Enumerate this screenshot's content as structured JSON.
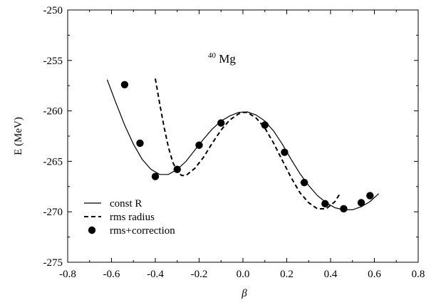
{
  "chart_data": {
    "type": "line",
    "title": "",
    "annotation": {
      "superscript": "40",
      "text": "Mg"
    },
    "xlabel": "β",
    "ylabel": "E (MeV)",
    "xlim": [
      -0.8,
      0.8
    ],
    "ylim": [
      -275,
      -250
    ],
    "xticks": [
      -0.8,
      -0.6,
      -0.4,
      -0.2,
      0.0,
      0.2,
      0.4,
      0.6,
      0.8
    ],
    "yticks": [
      -275,
      -270,
      -265,
      -260,
      -255,
      -250
    ],
    "xtick_labels": [
      "-0.8",
      "-0.6",
      "-0.4",
      "-0.2",
      "0.0",
      "0.2",
      "0.4",
      "0.6",
      "0.8"
    ],
    "ytick_labels": [
      "-275",
      "-270",
      "-265",
      "-260",
      "-255",
      "-250"
    ],
    "grid": false,
    "legend_position": "bottom-left",
    "series": [
      {
        "name": "const R",
        "style": "solid",
        "points": [
          [
            -0.62,
            -256.9
          ],
          [
            -0.58,
            -259.2
          ],
          [
            -0.54,
            -261.4
          ],
          [
            -0.5,
            -263.3
          ],
          [
            -0.46,
            -264.8
          ],
          [
            -0.42,
            -265.8
          ],
          [
            -0.38,
            -266.3
          ],
          [
            -0.34,
            -266.3
          ],
          [
            -0.3,
            -265.8
          ],
          [
            -0.26,
            -265.0
          ],
          [
            -0.22,
            -263.9
          ],
          [
            -0.18,
            -262.8
          ],
          [
            -0.14,
            -261.8
          ],
          [
            -0.1,
            -261.0
          ],
          [
            -0.06,
            -260.5
          ],
          [
            -0.02,
            -260.15
          ],
          [
            0.02,
            -260.1
          ],
          [
            0.06,
            -260.4
          ],
          [
            0.1,
            -261.0
          ],
          [
            0.14,
            -262.0
          ],
          [
            0.18,
            -263.3
          ],
          [
            0.22,
            -264.8
          ],
          [
            0.26,
            -266.2
          ],
          [
            0.3,
            -267.4
          ],
          [
            0.34,
            -268.4
          ],
          [
            0.38,
            -269.1
          ],
          [
            0.42,
            -269.6
          ],
          [
            0.46,
            -269.8
          ],
          [
            0.5,
            -269.8
          ],
          [
            0.54,
            -269.5
          ],
          [
            0.58,
            -269.0
          ],
          [
            0.62,
            -268.2
          ]
        ]
      },
      {
        "name": "rms radius",
        "style": "dashed",
        "points": [
          [
            -0.4,
            -256.8
          ],
          [
            -0.38,
            -259.3
          ],
          [
            -0.36,
            -261.6
          ],
          [
            -0.34,
            -263.6
          ],
          [
            -0.32,
            -265.1
          ],
          [
            -0.3,
            -266.0
          ],
          [
            -0.28,
            -266.4
          ],
          [
            -0.26,
            -266.4
          ],
          [
            -0.22,
            -265.7
          ],
          [
            -0.18,
            -264.6
          ],
          [
            -0.14,
            -263.2
          ],
          [
            -0.1,
            -261.9
          ],
          [
            -0.06,
            -260.9
          ],
          [
            -0.02,
            -260.3
          ],
          [
            0.0,
            -260.15
          ],
          [
            0.02,
            -260.15
          ],
          [
            0.06,
            -260.7
          ],
          [
            0.1,
            -261.7
          ],
          [
            0.14,
            -263.2
          ],
          [
            0.18,
            -264.9
          ],
          [
            0.22,
            -266.6
          ],
          [
            0.26,
            -268.1
          ],
          [
            0.3,
            -269.1
          ],
          [
            0.34,
            -269.7
          ],
          [
            0.38,
            -269.7
          ],
          [
            0.42,
            -269.0
          ],
          [
            0.44,
            -268.3
          ]
        ]
      },
      {
        "name": "rms+correction",
        "style": "markers",
        "points": [
          [
            -0.54,
            -257.4
          ],
          [
            -0.47,
            -263.2
          ],
          [
            -0.4,
            -266.5
          ],
          [
            -0.3,
            -265.8
          ],
          [
            -0.2,
            -263.4
          ],
          [
            -0.1,
            -261.2
          ],
          [
            0.1,
            -261.4
          ],
          [
            0.19,
            -264.1
          ],
          [
            0.28,
            -267.1
          ],
          [
            0.375,
            -269.2
          ],
          [
            0.46,
            -269.7
          ],
          [
            0.54,
            -269.1
          ],
          [
            0.58,
            -268.4
          ]
        ]
      }
    ]
  }
}
